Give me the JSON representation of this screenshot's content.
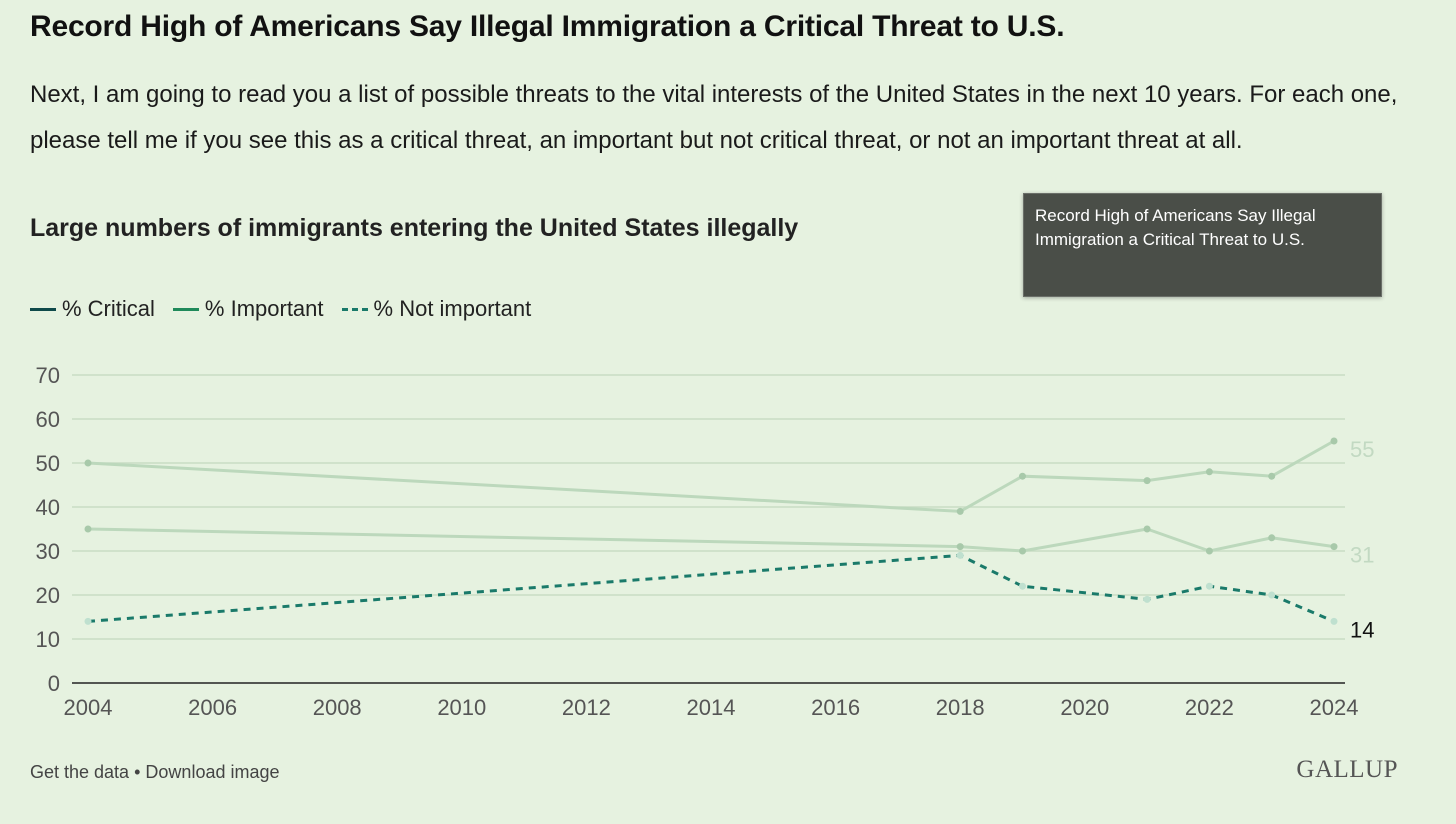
{
  "header": {
    "title": "Record High of Americans Say Illegal Immigration a Critical Threat to U.S.",
    "question": "Next, I am going to read you a list of possible threats to the vital interests of the United States in the next 10 years. For each one, please tell me if you see this as a critical threat, an important but not critical threat, or not an important threat at all.",
    "subtitle": "Large numbers of immigrants entering the United States illegally"
  },
  "tooltip": {
    "text": "Record High of Americans Say Illegal Immigration a Critical Threat to U.S."
  },
  "legend": [
    {
      "label": "% Critical",
      "color": "#0e4a4a",
      "style": "solid"
    },
    {
      "label": "% Important",
      "color": "#1f8a5a",
      "style": "solid"
    },
    {
      "label": "% Not important",
      "color": "#1a7a6a",
      "style": "dashed"
    }
  ],
  "footer": {
    "get_data": "Get the data",
    "separator": "•",
    "download": "Download image",
    "logo": "GALLUP"
  },
  "chart_data": {
    "type": "line",
    "xlim": [
      2004,
      2024
    ],
    "ylim": [
      0,
      70
    ],
    "x_ticks": [
      2004,
      2006,
      2008,
      2010,
      2012,
      2014,
      2016,
      2018,
      2020,
      2022,
      2024
    ],
    "y_ticks": [
      0,
      10,
      20,
      30,
      40,
      50,
      60,
      70
    ],
    "grid": true,
    "legend_position": "top-left",
    "series": [
      {
        "name": "% Critical",
        "color": "#0e4a4a",
        "dashed": false,
        "faded": true,
        "points": [
          [
            2004,
            50
          ],
          [
            2018,
            39
          ],
          [
            2019,
            47
          ],
          [
            2021,
            46
          ],
          [
            2022,
            48
          ],
          [
            2023,
            47
          ],
          [
            2024,
            55
          ]
        ],
        "end_label": "55"
      },
      {
        "name": "% Important",
        "color": "#1f8a5a",
        "dashed": false,
        "faded": true,
        "points": [
          [
            2004,
            35
          ],
          [
            2018,
            31
          ],
          [
            2019,
            30
          ],
          [
            2021,
            35
          ],
          [
            2022,
            30
          ],
          [
            2023,
            33
          ],
          [
            2024,
            31
          ]
        ],
        "end_label": "31"
      },
      {
        "name": "% Not important",
        "color": "#1a7a6a",
        "dashed": true,
        "faded": false,
        "points": [
          [
            2004,
            14
          ],
          [
            2018,
            29
          ],
          [
            2019,
            22
          ],
          [
            2021,
            19
          ],
          [
            2022,
            22
          ],
          [
            2023,
            20
          ],
          [
            2024,
            14
          ]
        ],
        "end_label": "14"
      }
    ]
  }
}
